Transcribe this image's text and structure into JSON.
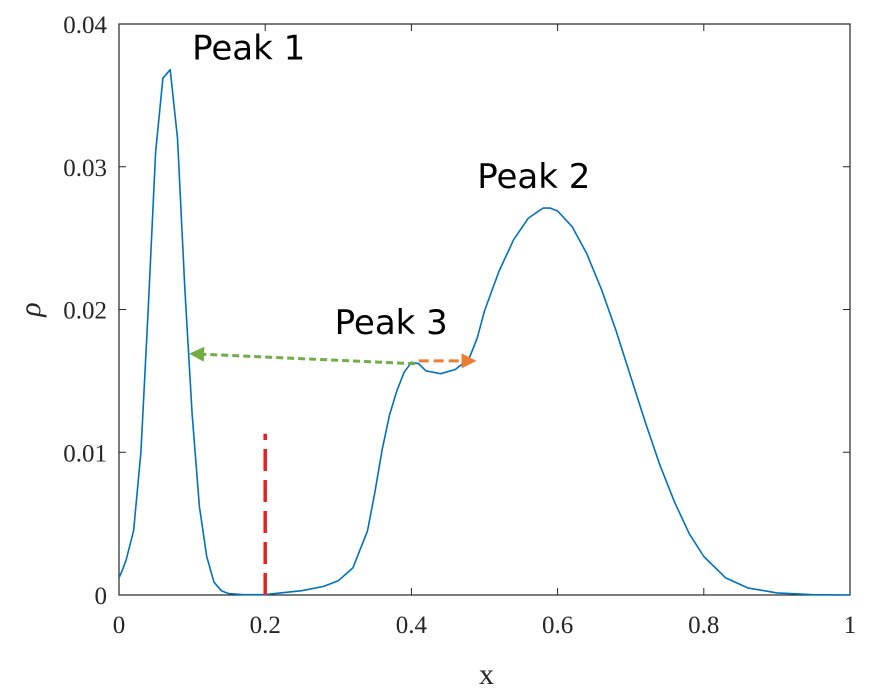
{
  "chart_data": {
    "type": "line",
    "xlabel": "x",
    "ylabel": "ρ",
    "xlim": [
      0,
      1
    ],
    "ylim": [
      0,
      0.04
    ],
    "xticks": [
      0,
      0.2,
      0.4,
      0.6,
      0.8,
      1
    ],
    "xtick_labels": [
      "0",
      "0.2",
      "0.4",
      "0.6",
      "0.8",
      "1"
    ],
    "yticks": [
      0,
      0.01,
      0.02,
      0.03,
      0.04
    ],
    "ytick_labels": [
      "0",
      "0.01",
      "0.02",
      "0.03",
      "0.04"
    ],
    "grid": false,
    "box": true,
    "series": [
      {
        "color": "#0072BD",
        "x": [
          0,
          0.005,
          0.01,
          0.02,
          0.03,
          0.04,
          0.05,
          0.06,
          0.07,
          0.08,
          0.09,
          0.1,
          0.11,
          0.12,
          0.13,
          0.14,
          0.15,
          0.17,
          0.2,
          0.25,
          0.28,
          0.3,
          0.32,
          0.34,
          0.35,
          0.36,
          0.37,
          0.38,
          0.39,
          0.4,
          0.41,
          0.42,
          0.44,
          0.46,
          0.47,
          0.48,
          0.49,
          0.5,
          0.52,
          0.54,
          0.56,
          0.58,
          0.59,
          0.6,
          0.62,
          0.64,
          0.66,
          0.68,
          0.7,
          0.72,
          0.74,
          0.76,
          0.78,
          0.8,
          0.83,
          0.86,
          0.9,
          0.95,
          1
        ],
        "y": [
          0.0012,
          0.0018,
          0.0025,
          0.0045,
          0.01,
          0.02,
          0.031,
          0.0362,
          0.0368,
          0.032,
          0.0215,
          0.0127,
          0.0062,
          0.0027,
          0.0009,
          0.0003,
          0.0001,
          2e-05,
          3e-05,
          0.0003,
          0.0006,
          0.001,
          0.0019,
          0.0045,
          0.0072,
          0.0102,
          0.0126,
          0.0143,
          0.0156,
          0.0163,
          0.0162,
          0.0157,
          0.0155,
          0.0158,
          0.0162,
          0.0167,
          0.018,
          0.0199,
          0.0227,
          0.0249,
          0.0264,
          0.0271,
          0.0271,
          0.0269,
          0.0258,
          0.0239,
          0.0214,
          0.0185,
          0.0153,
          0.0121,
          0.0091,
          0.0065,
          0.0043,
          0.0027,
          0.0012,
          0.0005,
          0.00015,
          2e-05,
          0
        ]
      }
    ],
    "annotations": [
      {
        "text": "Peak 1",
        "x": 0.1,
        "y": 0.0375
      },
      {
        "text": "Peak 2",
        "x": 0.49,
        "y": 0.0285
      },
      {
        "text": "Peak 3",
        "x": 0.295,
        "y": 0.0183
      }
    ],
    "markers": {
      "vline": {
        "x": 0.2,
        "y_top": 0.0113,
        "color": "#E8201E",
        "style": "dashed"
      },
      "green_arrow": {
        "x1": 0.405,
        "y1": 0.0162,
        "x2": 0.1,
        "y2": 0.0169,
        "color": "#70AD47",
        "style": "dashed"
      },
      "orange_arrow": {
        "x1": 0.41,
        "y1": 0.0164,
        "x2": 0.485,
        "y2": 0.0164,
        "color": "#ED7D31",
        "style": "dashed"
      }
    }
  }
}
